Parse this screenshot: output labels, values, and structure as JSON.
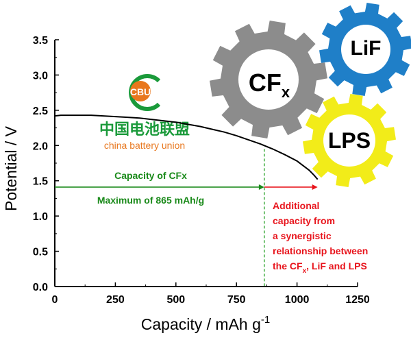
{
  "chart_data": {
    "type": "line",
    "xlabel": "Capacity / mAh g",
    "xlabel_sup": "-1",
    "ylabel": "Potential / V",
    "xlim": [
      0,
      1250
    ],
    "ylim": [
      0.0,
      3.5
    ],
    "x_ticks": [
      "0",
      "250",
      "500",
      "750",
      "1000",
      "1250"
    ],
    "y_ticks": [
      "0.0",
      "0.5",
      "1.0",
      "1.5",
      "2.0",
      "2.5",
      "3.0",
      "3.5"
    ],
    "series": [
      {
        "color": "#000000",
        "points": [
          [
            0,
            2.42
          ],
          [
            25,
            2.43
          ],
          [
            50,
            2.43
          ],
          [
            100,
            2.43
          ],
          [
            150,
            2.43
          ],
          [
            200,
            2.42
          ],
          [
            250,
            2.41
          ],
          [
            300,
            2.4
          ],
          [
            350,
            2.39
          ],
          [
            400,
            2.37
          ],
          [
            450,
            2.35
          ],
          [
            500,
            2.33
          ],
          [
            550,
            2.3
          ],
          [
            600,
            2.27
          ],
          [
            650,
            2.23
          ],
          [
            700,
            2.19
          ],
          [
            750,
            2.14
          ],
          [
            800,
            2.08
          ],
          [
            850,
            2.02
          ],
          [
            900,
            1.95
          ],
          [
            950,
            1.87
          ],
          [
            1000,
            1.78
          ],
          [
            1050,
            1.65
          ],
          [
            1070,
            1.58
          ],
          [
            1085,
            1.52
          ]
        ]
      }
    ],
    "vline": {
      "x": 865,
      "color": "#22a022"
    },
    "arrows": [
      {
        "from": 0,
        "to": 865,
        "y": 1.41,
        "color": "#1a8a1a"
      },
      {
        "from": 865,
        "to": 1085,
        "y": 1.41,
        "color": "#e8141c"
      }
    ],
    "annotations": {
      "green_line1": "Capacity of CFx",
      "green_line2": "Maximum of 865 mAh/g",
      "red_line1": "Additional",
      "red_line2": "capacity from",
      "red_line3": "a synergistic",
      "red_line4": "relationship between",
      "red_line5_a": "the CF",
      "red_line5_sub": "x",
      "red_line5_b": ", LiF and LPS"
    }
  },
  "gears": [
    {
      "label": "CF",
      "sub": "x",
      "color": "#8c8c8c"
    },
    {
      "label": "LiF",
      "sub": "",
      "color": "#1f7fc8"
    },
    {
      "label": "LPS",
      "sub": "",
      "color": "#f2ec19"
    }
  ],
  "logo": {
    "badge": "CBU",
    "chinese": "中国电池联盟",
    "english": "china battery union",
    "orange": "#e8771e",
    "green": "#1a9a3a"
  }
}
